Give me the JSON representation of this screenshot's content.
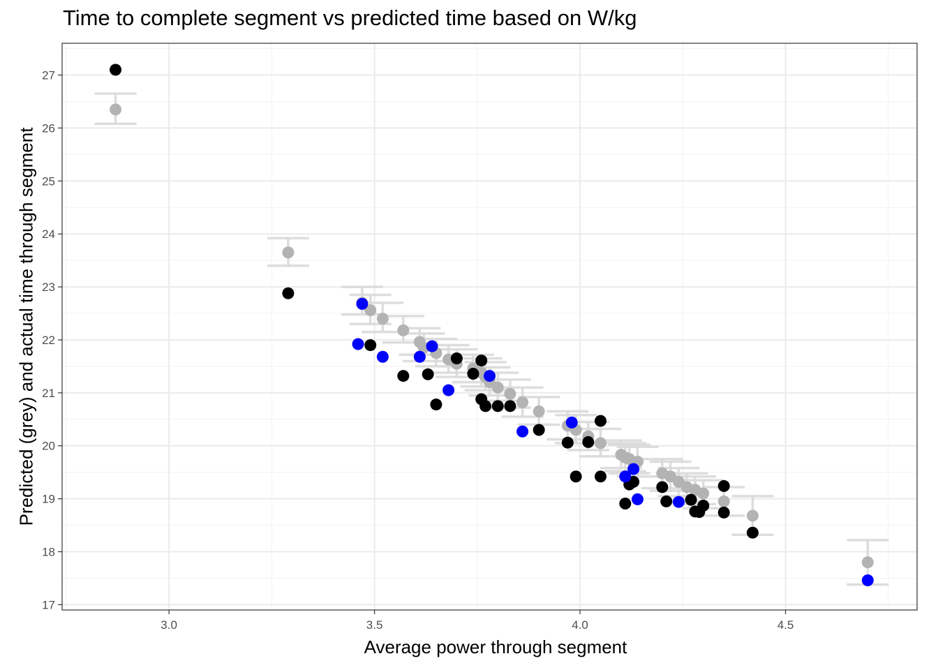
{
  "chart_data": {
    "type": "scatter",
    "title": "Time to complete segment vs predicted time based on W/kg",
    "xlabel": "Average power through segment",
    "ylabel": "Predicted (grey) and actual time through segment",
    "xlim": [
      2.74,
      4.82
    ],
    "ylim": [
      16.9,
      27.6
    ],
    "x_ticks": [
      3.0,
      3.5,
      4.0,
      4.5
    ],
    "x_tick_labels": [
      "3.0",
      "3.5",
      "4.0",
      "4.5"
    ],
    "y_ticks": [
      17,
      18,
      19,
      20,
      21,
      22,
      23,
      24,
      25,
      26,
      27
    ],
    "y_tick_labels": [
      "17",
      "18",
      "19",
      "20",
      "21",
      "22",
      "23",
      "24",
      "25",
      "26",
      "27"
    ],
    "grid": true,
    "legend": "none",
    "colors": {
      "predicted": "#b3b3b3",
      "errorbar": "#d9d9d9",
      "actual": "#000000",
      "actual_highlight": "#0000ff",
      "panel_border": "#333333",
      "grid_major": "#ebebeb",
      "grid_minor": "#f2f2f2"
    },
    "series": [
      {
        "role": "predicted",
        "color": "#b3b3b3",
        "points": [
          [
            2.87,
            26.35
          ],
          [
            3.29,
            23.65
          ],
          [
            3.47,
            22.7
          ],
          [
            3.49,
            22.56
          ],
          [
            3.52,
            22.4
          ],
          [
            3.57,
            22.18
          ],
          [
            3.61,
            21.96
          ],
          [
            3.62,
            21.85
          ],
          [
            3.65,
            21.75
          ],
          [
            3.68,
            21.63
          ],
          [
            3.7,
            21.55
          ],
          [
            3.74,
            21.46
          ],
          [
            3.76,
            21.38
          ],
          [
            3.77,
            21.3
          ],
          [
            3.78,
            21.2
          ],
          [
            3.8,
            21.1
          ],
          [
            3.83,
            20.98
          ],
          [
            3.86,
            20.82
          ],
          [
            3.9,
            20.65
          ],
          [
            3.97,
            20.38
          ],
          [
            3.99,
            20.3
          ],
          [
            4.02,
            20.18
          ],
          [
            4.05,
            20.05
          ],
          [
            4.1,
            19.83
          ],
          [
            4.11,
            19.78
          ],
          [
            4.12,
            19.75
          ],
          [
            4.14,
            19.7
          ],
          [
            4.2,
            19.48
          ],
          [
            4.22,
            19.42
          ],
          [
            4.24,
            19.32
          ],
          [
            4.26,
            19.22
          ],
          [
            4.28,
            19.17
          ],
          [
            4.3,
            19.1
          ],
          [
            4.35,
            18.95
          ],
          [
            4.42,
            18.68
          ],
          [
            4.7,
            17.8
          ]
        ],
        "error_bars": [
          [
            2.87,
            26.08,
            26.65
          ],
          [
            3.29,
            23.4,
            23.92
          ],
          [
            3.47,
            22.48,
            23.0
          ],
          [
            3.49,
            22.3,
            22.85
          ],
          [
            3.52,
            22.15,
            22.7
          ],
          [
            3.57,
            21.95,
            22.45
          ],
          [
            3.61,
            21.72,
            22.22
          ],
          [
            3.62,
            21.6,
            22.12
          ],
          [
            3.65,
            21.5,
            22.02
          ],
          [
            3.68,
            21.38,
            21.9
          ],
          [
            3.7,
            21.3,
            21.82
          ],
          [
            3.74,
            21.2,
            21.72
          ],
          [
            3.76,
            21.12,
            21.65
          ],
          [
            3.77,
            21.05,
            21.58
          ],
          [
            3.78,
            20.95,
            21.48
          ],
          [
            3.8,
            20.85,
            21.38
          ],
          [
            3.83,
            20.72,
            21.25
          ],
          [
            3.86,
            20.55,
            21.1
          ],
          [
            3.9,
            20.4,
            20.92
          ],
          [
            3.97,
            20.12,
            20.65
          ],
          [
            3.99,
            20.05,
            20.58
          ],
          [
            4.02,
            19.92,
            20.45
          ],
          [
            4.05,
            19.8,
            20.32
          ],
          [
            4.1,
            19.58,
            20.1
          ],
          [
            4.11,
            19.52,
            20.05
          ],
          [
            4.12,
            19.48,
            20.02
          ],
          [
            4.14,
            19.42,
            19.98
          ],
          [
            4.2,
            19.2,
            19.75
          ],
          [
            4.22,
            19.15,
            19.7
          ],
          [
            4.24,
            19.05,
            19.58
          ],
          [
            4.26,
            18.95,
            19.48
          ],
          [
            4.28,
            18.9,
            19.42
          ],
          [
            4.3,
            18.82,
            19.35
          ],
          [
            4.35,
            18.68,
            19.22
          ],
          [
            4.42,
            18.32,
            19.05
          ],
          [
            4.7,
            17.38,
            18.22
          ]
        ]
      },
      {
        "role": "actual",
        "color": "#000000",
        "points": [
          [
            2.87,
            27.1
          ],
          [
            3.29,
            22.88
          ],
          [
            3.49,
            21.9
          ],
          [
            3.57,
            21.32
          ],
          [
            3.63,
            21.35
          ],
          [
            3.65,
            20.78
          ],
          [
            3.7,
            21.65
          ],
          [
            3.74,
            21.36
          ],
          [
            3.76,
            21.61
          ],
          [
            3.76,
            20.88
          ],
          [
            3.77,
            20.75
          ],
          [
            3.8,
            20.75
          ],
          [
            3.83,
            20.75
          ],
          [
            3.9,
            20.3
          ],
          [
            3.97,
            20.06
          ],
          [
            3.99,
            19.42
          ],
          [
            4.02,
            20.07
          ],
          [
            4.05,
            20.47
          ],
          [
            4.05,
            19.42
          ],
          [
            4.11,
            18.91
          ],
          [
            4.12,
            19.27
          ],
          [
            4.13,
            19.32
          ],
          [
            4.2,
            19.22
          ],
          [
            4.21,
            18.95
          ],
          [
            4.27,
            18.98
          ],
          [
            4.28,
            18.76
          ],
          [
            4.29,
            18.75
          ],
          [
            4.3,
            18.87
          ],
          [
            4.35,
            18.74
          ],
          [
            4.35,
            19.24
          ],
          [
            4.42,
            18.36
          ]
        ]
      },
      {
        "role": "actual_highlight",
        "color": "#0000ff",
        "points": [
          [
            3.47,
            22.68
          ],
          [
            3.46,
            21.92
          ],
          [
            3.52,
            21.68
          ],
          [
            3.61,
            21.68
          ],
          [
            3.64,
            21.88
          ],
          [
            3.68,
            21.05
          ],
          [
            3.78,
            21.32
          ],
          [
            3.86,
            20.27
          ],
          [
            3.98,
            20.44
          ],
          [
            4.11,
            19.42
          ],
          [
            4.13,
            19.56
          ],
          [
            4.14,
            18.99
          ],
          [
            4.24,
            18.94
          ],
          [
            4.7,
            17.46
          ]
        ]
      }
    ]
  }
}
